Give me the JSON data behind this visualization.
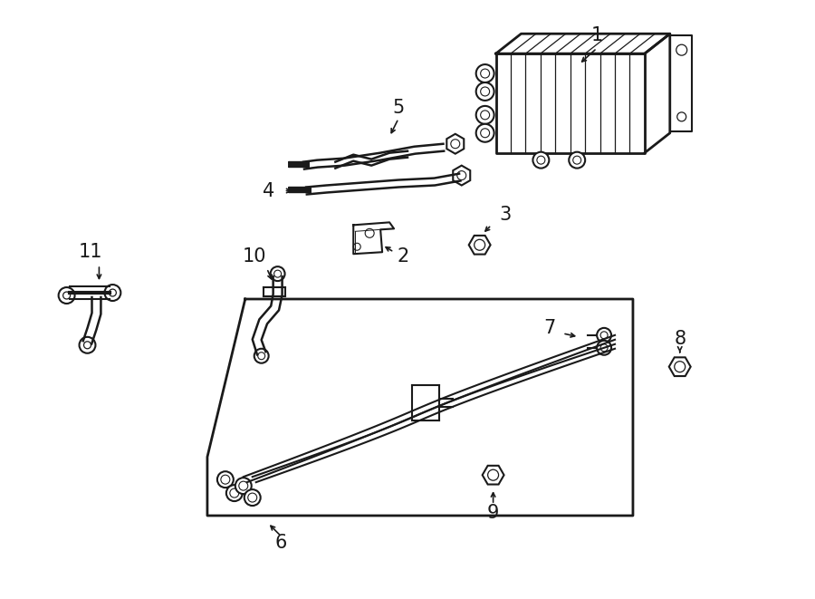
{
  "bg_color": "#ffffff",
  "line_color": "#1a1a1a",
  "line_width": 1.5,
  "fig_width": 9.0,
  "fig_height": 6.61,
  "dpi": 100
}
